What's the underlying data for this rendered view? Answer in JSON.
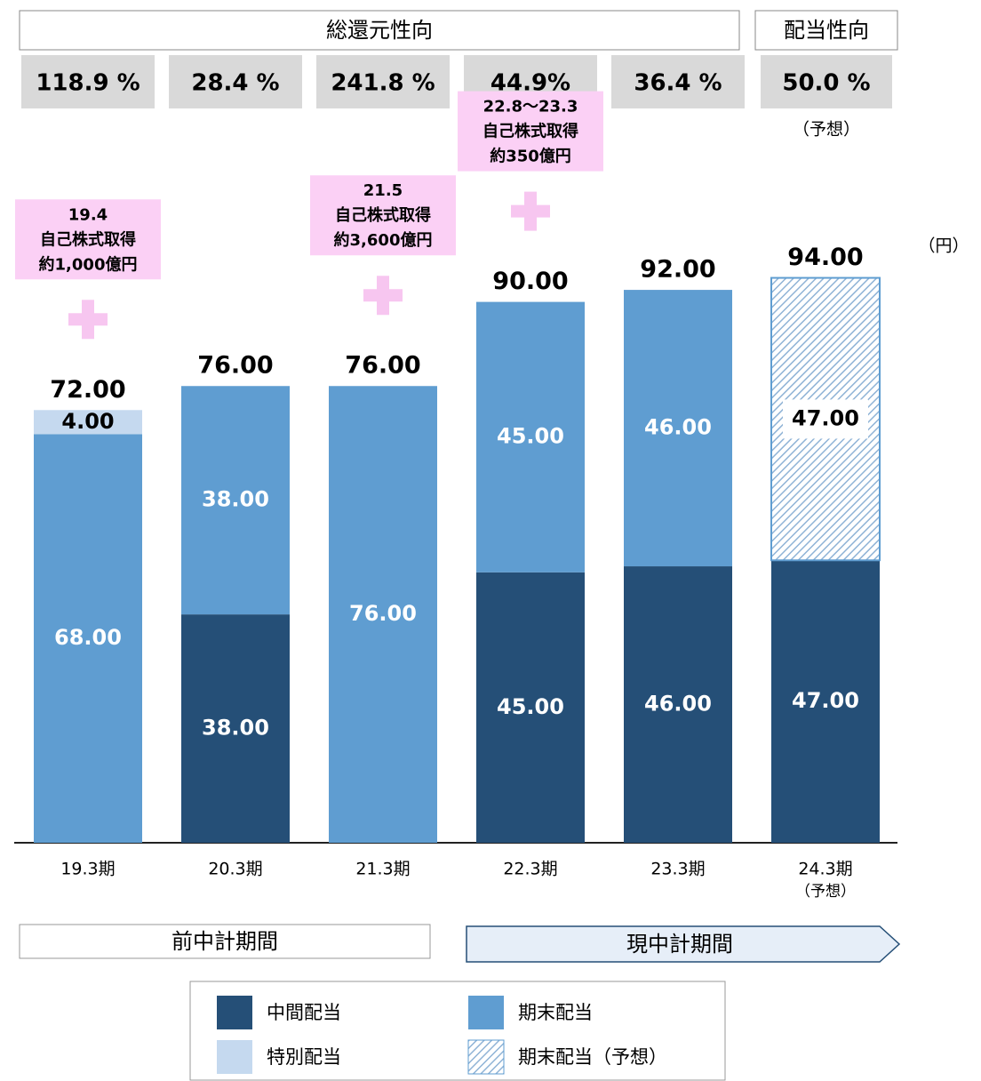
{
  "chart_data": {
    "type": "stacked_bar",
    "unit": "（円）",
    "categories": [
      "19.3期",
      "20.3期",
      "21.3期",
      "22.3期",
      "23.3期",
      "24.3期"
    ],
    "category_notes": [
      null,
      null,
      null,
      null,
      null,
      "（予想）"
    ],
    "series": [
      {
        "name": "中間配当",
        "color": "#254f77",
        "label_color": "#ffffff",
        "values": [
          null,
          38,
          null,
          45,
          46,
          47
        ],
        "value_labels": [
          null,
          "38.00",
          null,
          "45.00",
          "46.00",
          "47.00"
        ]
      },
      {
        "name": "期末配当",
        "color": "#5f9dd1",
        "label_color": "#ffffff",
        "values": [
          68,
          38,
          76,
          45,
          46,
          null
        ],
        "value_labels": [
          "68.00",
          "38.00",
          "76.00",
          "45.00",
          "46.00",
          null
        ]
      },
      {
        "name": "特別配当",
        "color": "#c5d9ef",
        "label_color": "#000000",
        "values": [
          4,
          null,
          null,
          null,
          null,
          null
        ],
        "value_labels": [
          "4.00",
          null,
          null,
          null,
          null,
          null
        ]
      },
      {
        "name": "期末配当（予想）",
        "color": "#8fb3d6",
        "label_color": "#000000",
        "pattern": "hatch",
        "values": [
          null,
          null,
          null,
          null,
          null,
          47
        ],
        "value_labels": [
          null,
          null,
          null,
          null,
          null,
          "47.00"
        ]
      }
    ],
    "totals": {
      "values": [
        72,
        76,
        76,
        90,
        92,
        94
      ],
      "value_labels": [
        "72.00",
        "76.00",
        "76.00",
        "90.00",
        "92.00",
        "94.00"
      ]
    },
    "total_return_ratio": {
      "title": "総還元性向",
      "values": [
        "118.9 %",
        "28.4 %",
        "241.8 %",
        "44.9%",
        "36.4 %"
      ]
    },
    "payout_ratio": {
      "title": "配当性向",
      "value": "50.0 %",
      "note": "（予想）"
    },
    "annotations": [
      [
        "19.4",
        "自己株式取得",
        "約1,000億円"
      ],
      null,
      [
        "21.5",
        "自己株式取得",
        "約3,600億円"
      ],
      [
        "22.8〜23.3",
        "自己株式取得",
        "約350億円"
      ],
      null,
      null
    ],
    "periods": [
      "前中計期間",
      "現中計期間"
    ],
    "ylim": [
      0,
      100
    ]
  }
}
